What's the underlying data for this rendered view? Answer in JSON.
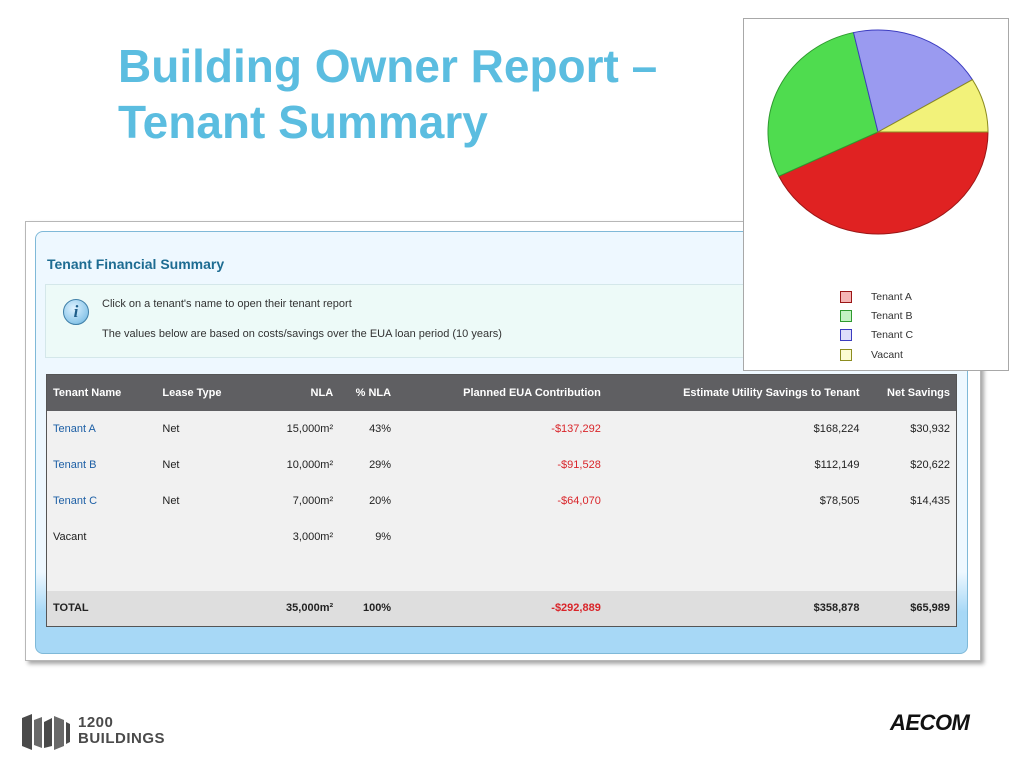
{
  "slide": {
    "title_line1": "Building Owner Report –",
    "title_line2": "Tenant Summary"
  },
  "panel": {
    "title": "Tenant Financial Summary",
    "info_icon": "info-icon",
    "info_line1": "Click on a tenant's name to open their tenant report",
    "info_line2": "The values below are based on costs/savings over the EUA loan period (10 years)"
  },
  "table": {
    "columns": [
      "Tenant Name",
      "Lease Type",
      "NLA",
      "% NLA",
      "Planned EUA Contribution",
      "Estimate Utility Savings to Tenant",
      "Net Savings"
    ],
    "rows": [
      {
        "name": "Tenant A",
        "lease": "Net",
        "nla": "15,000m²",
        "pct": "43%",
        "eua": "-$137,292",
        "savings": "$168,224",
        "net": "$30,932"
      },
      {
        "name": "Tenant B",
        "lease": "Net",
        "nla": "10,000m²",
        "pct": "29%",
        "eua": "-$91,528",
        "savings": "$112,149",
        "net": "$20,622"
      },
      {
        "name": "Tenant C",
        "lease": "Net",
        "nla": "7,000m²",
        "pct": "20%",
        "eua": "-$64,070",
        "savings": "$78,505",
        "net": "$14,435"
      },
      {
        "name": "Vacant",
        "lease": "",
        "nla": "3,000m²",
        "pct": "9%",
        "eua": "",
        "savings": "",
        "net": ""
      }
    ],
    "total": {
      "name": "TOTAL",
      "nla": "35,000m²",
      "pct": "100%",
      "eua": "-$292,889",
      "savings": "$358,878",
      "net": "$65,989"
    }
  },
  "chart_data": {
    "type": "pie",
    "categories": [
      "Tenant A",
      "Tenant B",
      "Tenant C",
      "Vacant"
    ],
    "values": [
      15000,
      10000,
      7000,
      3000
    ],
    "colors": [
      "#e02222",
      "#4fdc4f",
      "#9a9af0",
      "#f2f27a"
    ],
    "legend": "bottom"
  },
  "footer": {
    "logo_left_line1": "1200",
    "logo_left_line2": "BUILDINGS",
    "logo_right": "AECOM"
  }
}
